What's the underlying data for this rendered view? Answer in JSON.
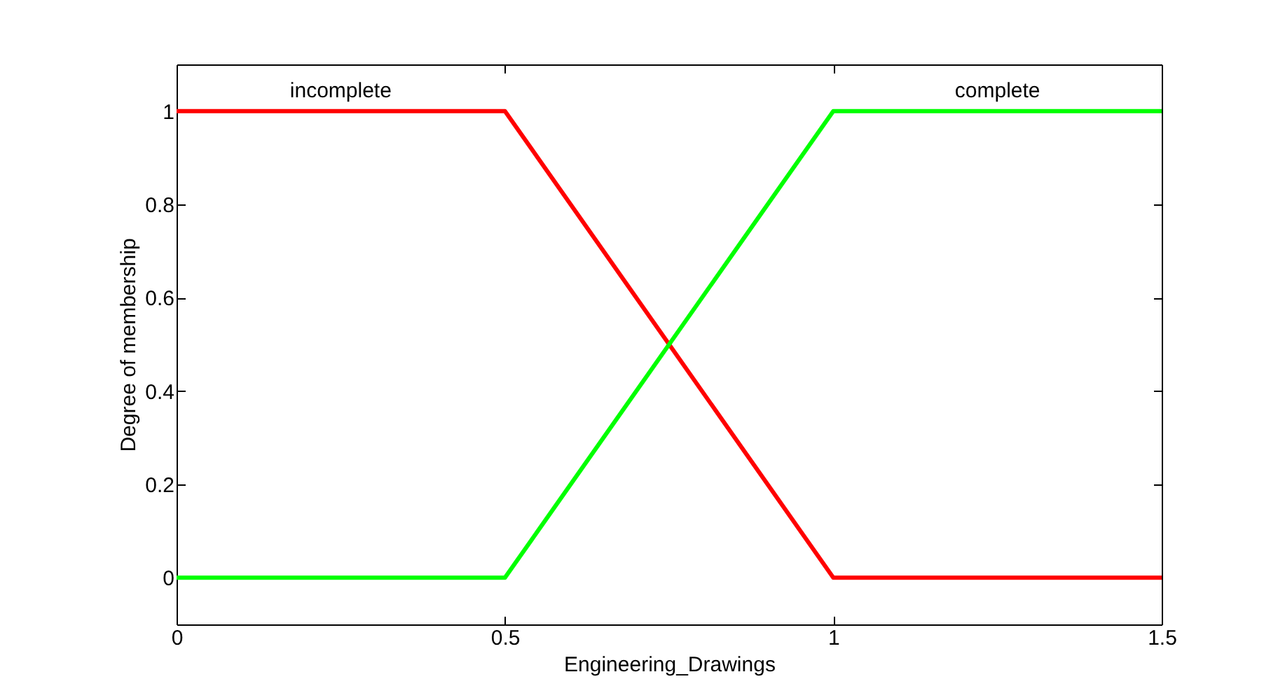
{
  "chart_data": {
    "type": "line",
    "xlabel": "Engineering_Drawings",
    "ylabel": "Degree of membership",
    "x": [
      0,
      0.5,
      1,
      1.5
    ],
    "series": [
      {
        "name": "incomplete",
        "color": "#ff0000",
        "values": [
          1,
          1,
          0,
          0
        ]
      },
      {
        "name": "complete",
        "color": "#00ff00",
        "values": [
          0,
          0,
          1,
          1
        ]
      }
    ],
    "xlim": [
      0,
      1.5
    ],
    "xticks": [
      0,
      0.5,
      1,
      1.5
    ],
    "ylim": [
      -0.1,
      1.1
    ],
    "yticks": [
      0,
      0.2,
      0.4,
      0.6,
      0.8,
      1
    ]
  }
}
